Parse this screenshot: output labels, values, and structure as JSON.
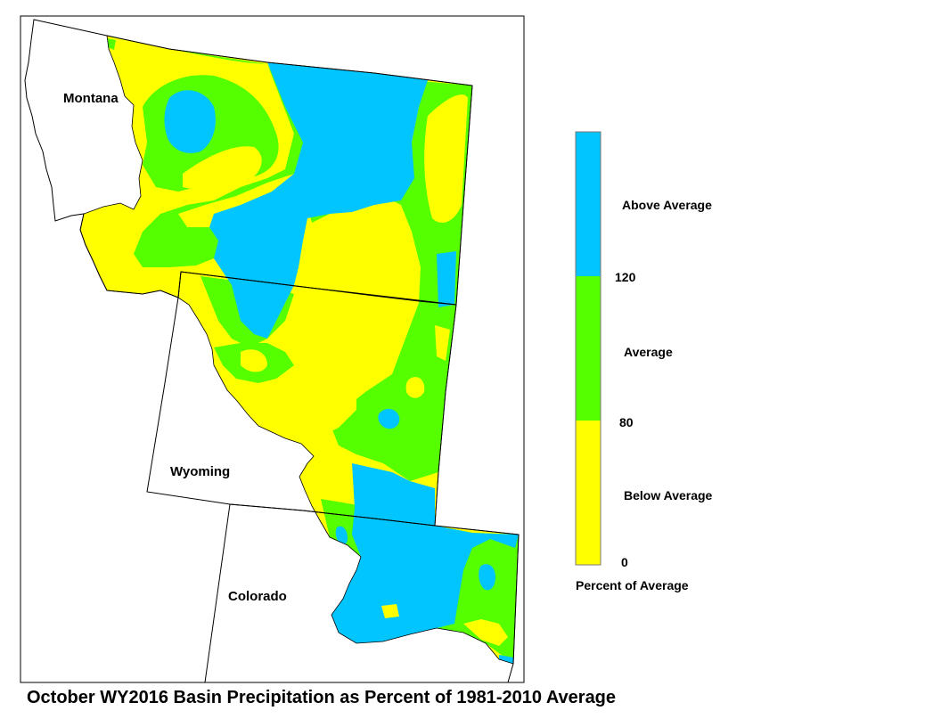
{
  "title": "October WY2016 Basin Precipitation as Percent of 1981-2010 Average",
  "states": [
    "Montana",
    "Wyoming",
    "Colorado"
  ],
  "legend": {
    "classes": [
      {
        "label": "Above Average",
        "color": "#00c5ff"
      },
      {
        "label": "Average",
        "color": "#55ff00"
      },
      {
        "label": "Below Average",
        "color": "#ffff00"
      }
    ],
    "breaks": [
      "120",
      "80",
      "0"
    ],
    "caption": "Percent of Average"
  },
  "colors": {
    "above": "#00c5ff",
    "average": "#55ff00",
    "below": "#ffff00"
  }
}
